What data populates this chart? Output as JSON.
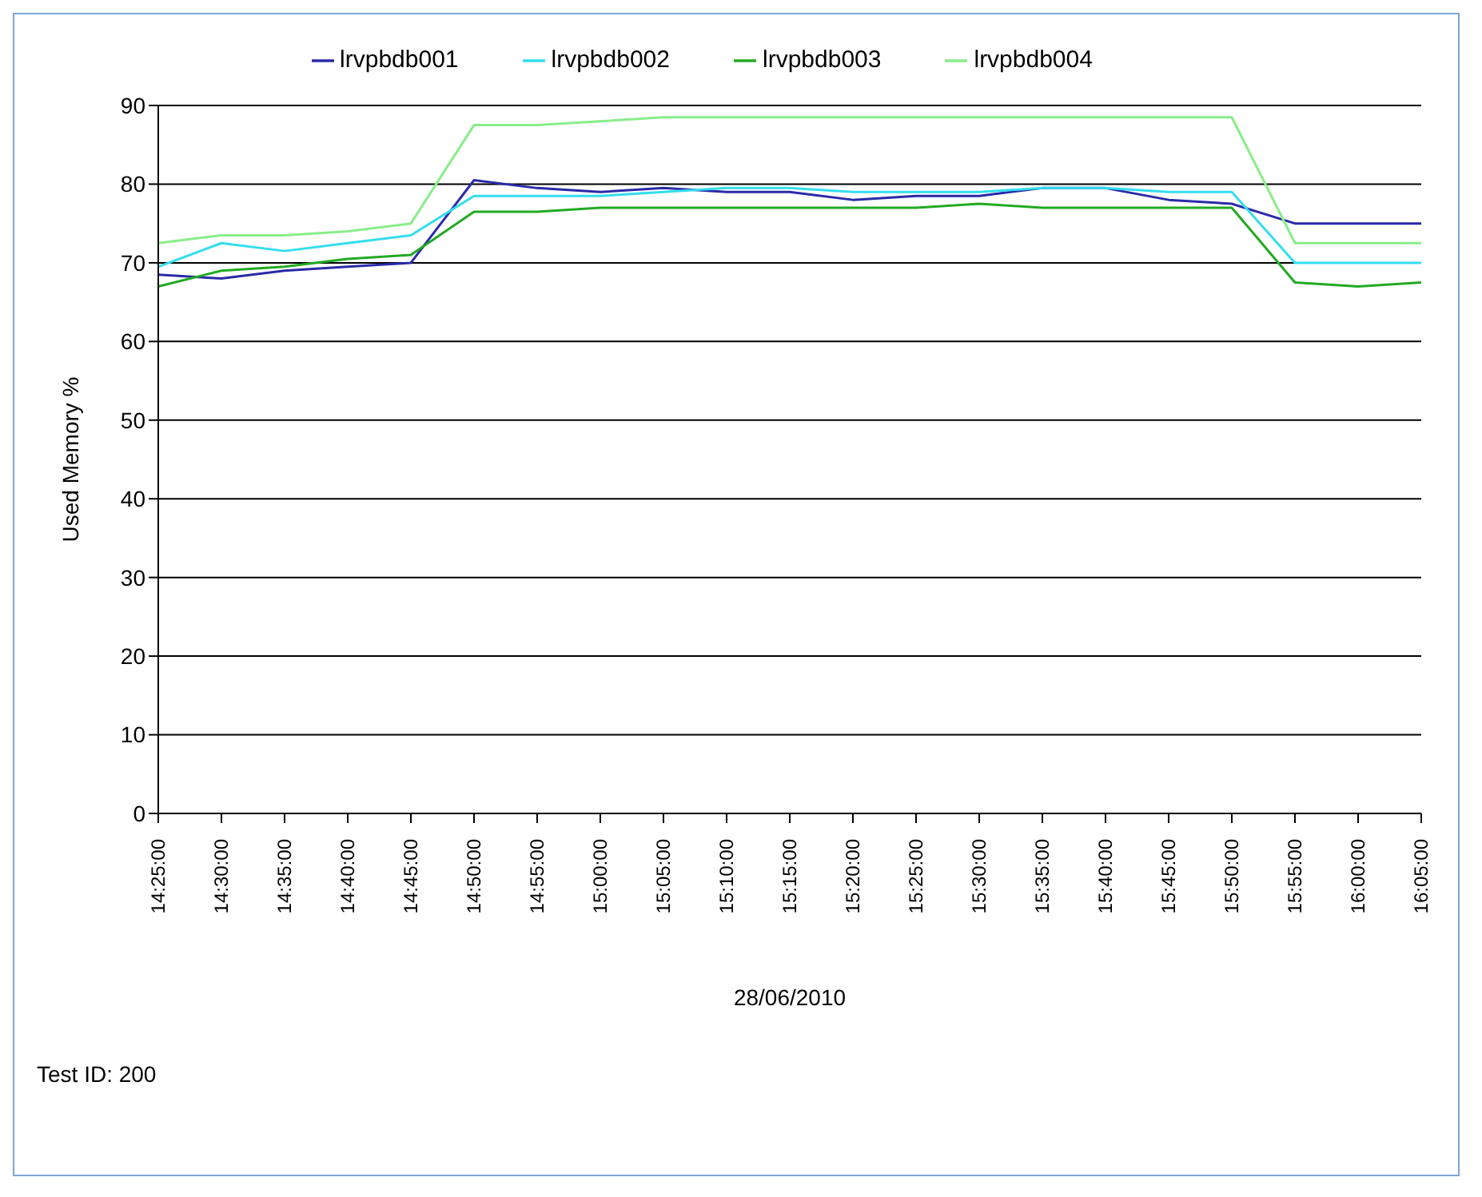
{
  "chart_data": {
    "type": "line",
    "xlabel": "28/06/2010",
    "ylabel": "Used Memory %",
    "annotations": [
      "Test ID: 200"
    ],
    "categories": [
      "14:25:00",
      "14:30:00",
      "14:35:00",
      "14:40:00",
      "14:45:00",
      "14:50:00",
      "14:55:00",
      "15:00:00",
      "15:05:00",
      "15:10:00",
      "15:15:00",
      "15:20:00",
      "15:25:00",
      "15:30:00",
      "15:35:00",
      "15:40:00",
      "15:45:00",
      "15:50:00",
      "15:55:00",
      "16:00:00",
      "16:05:00"
    ],
    "series": [
      {
        "name": "lrvpbdb001",
        "color": "#2a2aa8",
        "values": [
          68.5,
          68,
          69,
          69.5,
          70,
          80.5,
          79.5,
          79,
          79.5,
          79,
          79,
          78,
          78.5,
          78.5,
          79.5,
          79.5,
          78,
          77.5,
          75,
          75,
          75
        ]
      },
      {
        "name": "lrvpbdb002",
        "color": "#33ddee",
        "values": [
          69.5,
          72.5,
          71.5,
          72.5,
          73.5,
          78.5,
          78.5,
          78.5,
          79,
          79.5,
          79.5,
          79,
          79,
          79,
          79.5,
          79.5,
          79,
          79,
          70,
          70,
          70
        ]
      },
      {
        "name": "lrvpbdb003",
        "color": "#22aa22",
        "values": [
          67,
          69,
          69.5,
          70.5,
          71,
          76.5,
          76.5,
          77,
          77,
          77,
          77,
          77,
          77,
          77.5,
          77,
          77,
          77,
          77,
          67.5,
          67,
          67.5
        ]
      },
      {
        "name": "lrvpbdb004",
        "color": "#88ee88",
        "values": [
          72.5,
          73.5,
          73.5,
          74,
          75,
          87.5,
          87.5,
          88,
          88.5,
          88.5,
          88.5,
          88.5,
          88.5,
          88.5,
          88.5,
          88.5,
          88.5,
          88.5,
          72.5,
          72.5,
          72.5
        ]
      }
    ],
    "ylim": [
      0,
      90
    ],
    "yticks": [
      0,
      10,
      20,
      30,
      40,
      50,
      60,
      70,
      80,
      90
    ],
    "grid": "y",
    "legend": "top",
    "marker": "none"
  }
}
